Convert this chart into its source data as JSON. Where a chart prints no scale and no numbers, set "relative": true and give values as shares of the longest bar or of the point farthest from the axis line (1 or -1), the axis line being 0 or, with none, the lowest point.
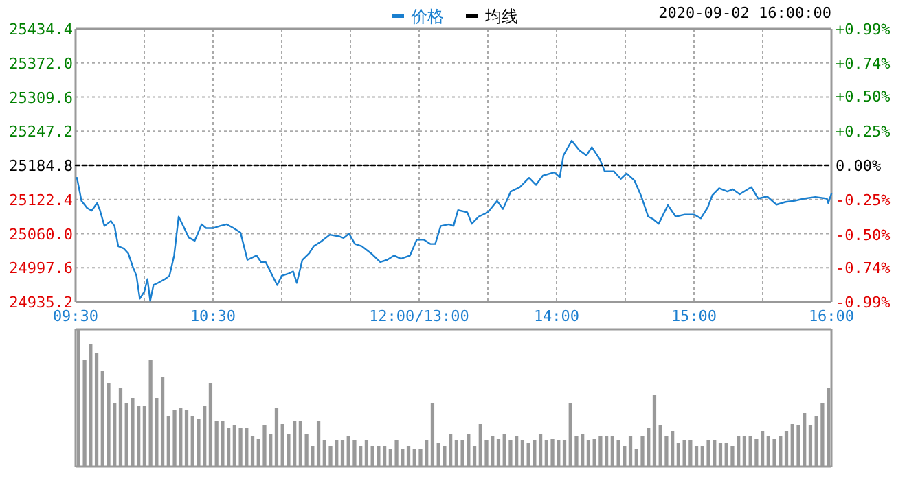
{
  "chart_data": [
    {
      "type": "line",
      "x": [
        9.51,
        9.543,
        9.583,
        9.617,
        9.657,
        9.677,
        9.71,
        9.757,
        9.783,
        9.81,
        9.85,
        9.883,
        9.917,
        9.943,
        9.967,
        10,
        10.023,
        10.043,
        10.067,
        10.1,
        10.15,
        10.183,
        10.217,
        10.25,
        10.283,
        10.323,
        10.367,
        10.417,
        10.45,
        10.5,
        10.55,
        10.6,
        10.65,
        10.7,
        10.75,
        10.783,
        10.817,
        10.85,
        10.883,
        10.917,
        10.967,
        11,
        11.05,
        11.083,
        11.11,
        11.15,
        11.2,
        11.233,
        11.283,
        11.35,
        11.417,
        11.45,
        11.49,
        11.533,
        11.583,
        11.65,
        11.717,
        11.767,
        11.817,
        11.867,
        11.933,
        11.983,
        12
      ],
      "series": [
        {
          "name": "价格",
          "color": "#1a7fcf",
          "values": [
            25162,
            25120,
            25107,
            25102,
            25116,
            25103,
            25074,
            25083,
            25074,
            25037,
            25033,
            25024,
            24999,
            24983,
            24941,
            24954,
            24977,
            24937,
            24966,
            24970,
            24977,
            24983,
            25020,
            25091,
            25074,
            25053,
            25047,
            25077,
            25070,
            25070,
            25074,
            25077,
            25070,
            25062,
            25012,
            25016,
            25020,
            25008,
            25008,
            24991,
            24966,
            24983,
            24987,
            24991,
            24970,
            25012,
            25024,
            25037,
            25045,
            25058,
            25055,
            25052,
            25060,
            25041,
            25037,
            25024,
            25008,
            25012,
            25020,
            25014,
            25020,
            25049,
            25049
          ]
        },
        {
          "name": "均线",
          "color": "#000000",
          "line_style": "dashed",
          "x": [
            9.5,
            12
          ],
          "values": [
            25184.8,
            25184.8
          ]
        }
      ],
      "xlim": [
        9.5,
        12
      ],
      "xticks": [
        {
          "value": 9.5,
          "label": "09:30"
        },
        {
          "value": 10,
          "label": null
        },
        {
          "value": 10.5,
          "label": "10:30"
        },
        {
          "value": 11,
          "label": null
        },
        {
          "value": 11.5,
          "label": null
        },
        {
          "value": 12,
          "label": "12:00/13:00"
        }
      ],
      "ylim": [
        24935.2,
        25434.4
      ],
      "yticks": [
        24935.2,
        24997.6,
        {
          "value": 25060,
          "label": "25060.0"
        },
        25122.4,
        25184.8,
        25247.2,
        25309.6,
        {
          "value": 25372,
          "label": "25372.0"
        },
        25434.4
      ],
      "grid": true,
      "legend": "top",
      "marker": "none"
    },
    {
      "type": "line",
      "subtitle": "2020-09-02 16:00:00",
      "tick_labels": "x",
      "x": [
        13,
        13.033,
        13.083,
        13.117,
        13.157,
        13.217,
        13.25,
        13.283,
        13.35,
        13.383,
        13.433,
        13.5,
        13.567,
        13.61,
        13.667,
        13.733,
        13.8,
        13.85,
        13.9,
        13.983,
        14.023,
        14.05,
        14.11,
        14.167,
        14.217,
        14.257,
        14.317,
        14.35,
        14.417,
        14.467,
        14.51,
        14.567,
        14.617,
        14.667,
        14.7,
        14.743,
        14.81,
        14.867,
        14.933,
        15,
        15.05,
        15.1,
        15.133,
        15.183,
        15.243,
        15.283,
        15.333,
        15.417,
        15.467,
        15.533,
        15.6,
        15.667,
        15.733,
        15.8,
        15.883,
        15.967,
        15.977,
        16
      ],
      "series": [
        {
          "color": "#1a7fcf",
          "values": [
            25049,
            25049,
            25041,
            25041,
            25074,
            25077,
            25074,
            25103,
            25099,
            25078,
            25091,
            25099,
            25120,
            25105,
            25137,
            25145,
            25162,
            25149,
            25166,
            25172,
            25163,
            25203,
            25230,
            25212,
            25203,
            25218,
            25195,
            25174,
            25174,
            25160,
            25170,
            25157,
            25128,
            25091,
            25087,
            25078,
            25112,
            25091,
            25095,
            25095,
            25088,
            25108,
            25130,
            25143,
            25137,
            25141,
            25132,
            25145,
            25124,
            25128,
            25113,
            25118,
            25120,
            25124,
            25127,
            25124,
            25116,
            25133
          ]
        },
        {
          "color": "#000000",
          "line_style": "dashed",
          "x": [
            13,
            16
          ],
          "values": [
            25184.8,
            25184.8
          ]
        }
      ],
      "xlim": [
        13,
        16
      ],
      "xticks": [
        {
          "value": 13,
          "label": null
        },
        {
          "value": 13.5,
          "label": null
        },
        {
          "value": 14,
          "label": "14:00"
        },
        {
          "value": 14.5,
          "label": null
        },
        {
          "value": 15,
          "label": "15:00"
        },
        {
          "value": 15.5,
          "label": null
        },
        {
          "value": 16,
          "label": "16:00"
        }
      ],
      "ylim": [
        24935.2,
        25434.4
      ],
      "yticks": [
        24935.2,
        24997.6,
        25060,
        25122.4,
        25184.8,
        25247.2,
        25309.6,
        25372,
        25434.4
      ],
      "y2lim": [
        -0.99,
        0.99
      ],
      "y2ticks": [
        {
          "value": -0.99,
          "label": "-0.99%"
        },
        {
          "value": -0.74,
          "label": "-0.74%"
        },
        {
          "value": -0.5,
          "label": "-0.50%"
        },
        {
          "value": -0.25,
          "label": "-0.25%"
        },
        {
          "value": 0,
          "label": "0.00%"
        },
        {
          "value": 0.25,
          "label": "+0.25%"
        },
        {
          "value": 0.5,
          "label": "+0.50%"
        },
        {
          "value": 0.74,
          "label": "+0.74%"
        },
        {
          "value": 0.99,
          "label": "+0.99%"
        }
      ],
      "grid": true,
      "marker": "none"
    },
    {
      "type": "bar",
      "color": "#999999",
      "relative": true,
      "categories": [
        null,
        null,
        null,
        null,
        null,
        null,
        null,
        null,
        null,
        null,
        null,
        null,
        null,
        null,
        null,
        null,
        null,
        null,
        null,
        null,
        null,
        null,
        null,
        null,
        null,
        null,
        null,
        null,
        null,
        null,
        null,
        null,
        null,
        null,
        null,
        null,
        null,
        null,
        null,
        null,
        null,
        null,
        null,
        null,
        null,
        null,
        null,
        null,
        null,
        null,
        null,
        null,
        null,
        null,
        null,
        null,
        null,
        null,
        null,
        null,
        null,
        null,
        null,
        null,
        null,
        null,
        null,
        null,
        null,
        null,
        null,
        null,
        null,
        null,
        null,
        null,
        null,
        null,
        null,
        null,
        null,
        null,
        null,
        null,
        null,
        null,
        null,
        null,
        null,
        null,
        null,
        null,
        null,
        null,
        null,
        null,
        null,
        null,
        null,
        null,
        null,
        null,
        null,
        null,
        null,
        null,
        null,
        null,
        null,
        null,
        null,
        null,
        null,
        null,
        null,
        null,
        null,
        null,
        null,
        null,
        null,
        null,
        null,
        null,
        null,
        null
      ],
      "values": [
        1,
        0.78,
        0.89,
        0.83,
        0.7,
        0.61,
        0.46,
        0.57,
        0.46,
        0.5,
        0.44,
        0.44,
        0.78,
        0.5,
        0.65,
        0.37,
        0.41,
        0.43,
        0.41,
        0.37,
        0.35,
        0.44,
        0.61,
        0.33,
        0.33,
        0.28,
        0.3,
        0.28,
        0.28,
        0.22,
        0.2,
        0.3,
        0.24,
        0.43,
        0.31,
        0.24,
        0.33,
        0.33,
        0.24,
        0.15,
        0.33,
        0.19,
        0.15,
        0.19,
        0.19,
        0.22,
        0.19,
        0.15,
        0.19,
        0.15,
        0.15,
        0.15,
        0.13,
        0.19,
        0.13,
        0.15,
        0.13,
        0.13,
        0.19,
        0.46,
        0.17,
        0.15,
        0.24,
        0.19,
        0.19,
        0.24,
        0.15,
        0.31,
        0.19,
        0.22,
        0.2,
        0.24,
        0.19,
        0.22,
        0.19,
        0.17,
        0.19,
        0.24,
        0.19,
        0.2,
        0.19,
        0.19,
        0.46,
        0.22,
        0.24,
        0.19,
        0.2,
        0.22,
        0.22,
        0.22,
        0.19,
        0.15,
        0.22,
        0.13,
        0.22,
        0.28,
        0.52,
        0.3,
        0.22,
        0.26,
        0.17,
        0.19,
        0.19,
        0.15,
        0.15,
        0.19,
        0.19,
        0.17,
        0.17,
        0.15,
        0.22,
        0.22,
        0.22,
        0.2,
        0.26,
        0.22,
        0.2,
        0.22,
        0.26,
        0.31,
        0.3,
        0.39,
        0.3,
        0.37,
        0.46,
        0.57
      ]
    }
  ]
}
